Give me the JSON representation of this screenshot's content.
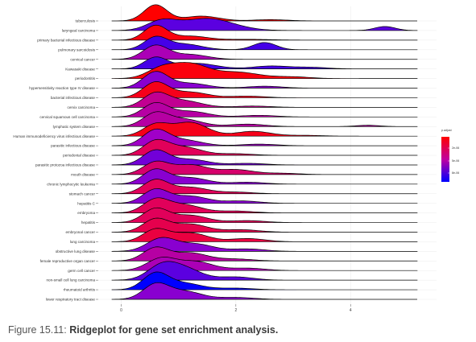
{
  "caption": {
    "number": "Figure 15.11:",
    "title": "Ridgeplot for gene set enrichment analysis."
  },
  "chart_data": {
    "type": "ridgeline",
    "xlim": [
      -0.4,
      5.5
    ],
    "x_ticks": [
      0,
      2,
      4
    ],
    "x_tick_labels": [
      "0",
      "2",
      "4"
    ],
    "grid": true,
    "legend_position": "right",
    "legend": {
      "title": "p.adjust",
      "range": [
        0.0,
        0.1
      ],
      "labels": [
        "2e-06",
        "5e-06",
        "8e-06"
      ],
      "colors": [
        "#ff0000",
        "#0000ff"
      ]
    },
    "categories": [
      "tuberculosis",
      "laryngeal carcinoma",
      "primary bacterial infectious disease",
      "pulmonary sarcoidosis",
      "cervical cancer",
      "Kawasaki disease",
      "periodontitis",
      "hypersensitivity reaction type IV disease",
      "bacterial infectious disease",
      "cervix carcinoma",
      "cervical squamous cell carcinoma",
      "lymphatic system disease",
      "Human immunodeficiency virus infectious disease",
      "parasitic infectious disease",
      "periodontal disease",
      "parasitic protozoa infectious disease",
      "mouth disease",
      "chronic lymphocytic leukemia",
      "stomach cancer",
      "hepatitis C",
      "embryoma",
      "hepatitis",
      "embryonal cancer",
      "lung carcinoma",
      "obstructive lung disease",
      "female reproductive organ cancer",
      "germ cell cancer",
      "non-small cell lung carcinoma",
      "rheumatoid arthritis",
      "lower respiratory tract disease"
    ],
    "series": [
      {
        "peaks": [
          [
            0.6,
            1.0,
            0.2
          ],
          [
            1.4,
            0.3,
            0.3
          ],
          [
            2.6,
            0.08,
            0.3
          ]
        ],
        "color_value": 0.0
      },
      {
        "peaks": [
          [
            0.7,
            0.55,
            0.25
          ],
          [
            1.5,
            0.75,
            0.45
          ],
          [
            4.6,
            0.25,
            0.18
          ]
        ],
        "color_value": 0.8
      },
      {
        "peaks": [
          [
            0.6,
            0.9,
            0.2
          ],
          [
            1.2,
            0.25,
            0.3
          ],
          [
            2.2,
            0.05,
            0.4
          ]
        ],
        "color_value": 0.05
      },
      {
        "peaks": [
          [
            0.6,
            0.75,
            0.2
          ],
          [
            1.1,
            0.35,
            0.3
          ],
          [
            2.5,
            0.45,
            0.2
          ]
        ],
        "color_value": 0.85
      },
      {
        "peaks": [
          [
            0.6,
            0.85,
            0.22
          ],
          [
            1.2,
            0.3,
            0.3
          ]
        ],
        "color_value": 0.6
      },
      {
        "peaks": [
          [
            0.6,
            0.7,
            0.2
          ],
          [
            1.3,
            0.35,
            0.35
          ],
          [
            2.6,
            0.18,
            0.3
          ],
          [
            3.3,
            0.1,
            0.3
          ]
        ],
        "color_value": 0.85
      },
      {
        "peaks": [
          [
            0.7,
            0.6,
            0.25
          ],
          [
            1.2,
            0.85,
            0.3
          ],
          [
            2.0,
            0.4,
            0.4
          ],
          [
            3.0,
            0.1,
            0.3
          ]
        ],
        "color_value": 0.05
      },
      {
        "peaks": [
          [
            0.6,
            1.0,
            0.22
          ],
          [
            1.2,
            0.3,
            0.3
          ],
          [
            2.5,
            0.12,
            0.3
          ]
        ],
        "color_value": 0.7
      },
      {
        "peaks": [
          [
            0.6,
            0.95,
            0.22
          ],
          [
            1.2,
            0.35,
            0.3
          ],
          [
            2.2,
            0.1,
            0.3
          ]
        ],
        "color_value": 0.1
      },
      {
        "peaks": [
          [
            0.6,
            0.85,
            0.22
          ],
          [
            1.1,
            0.4,
            0.3
          ],
          [
            2.3,
            0.08,
            0.3
          ]
        ],
        "color_value": 0.5
      },
      {
        "peaks": [
          [
            0.6,
            0.85,
            0.22
          ],
          [
            1.2,
            0.35,
            0.3
          ],
          [
            2.4,
            0.1,
            0.3
          ]
        ],
        "color_value": 0.55
      },
      {
        "peaks": [
          [
            0.6,
            0.8,
            0.22
          ],
          [
            1.1,
            0.45,
            0.3
          ],
          [
            2.2,
            0.15,
            0.3
          ],
          [
            4.3,
            0.08,
            0.2
          ]
        ],
        "color_value": 0.55
      },
      {
        "peaks": [
          [
            0.6,
            0.7,
            0.22
          ],
          [
            1.2,
            0.85,
            0.3
          ],
          [
            2.3,
            0.3,
            0.3
          ],
          [
            3.2,
            0.05,
            0.3
          ]
        ],
        "color_value": 0.1
      },
      {
        "peaks": [
          [
            0.6,
            0.95,
            0.22
          ],
          [
            1.1,
            0.35,
            0.3
          ],
          [
            2.4,
            0.1,
            0.3
          ]
        ],
        "color_value": 0.65
      },
      {
        "peaks": [
          [
            0.6,
            0.85,
            0.22
          ],
          [
            1.1,
            0.5,
            0.3
          ],
          [
            2.0,
            0.1,
            0.3
          ]
        ],
        "color_value": 0.35
      },
      {
        "peaks": [
          [
            0.6,
            0.9,
            0.22
          ],
          [
            1.2,
            0.35,
            0.3
          ],
          [
            2.2,
            0.1,
            0.3
          ]
        ],
        "color_value": 0.75
      },
      {
        "peaks": [
          [
            0.6,
            0.75,
            0.22
          ],
          [
            1.2,
            0.6,
            0.3
          ],
          [
            2.0,
            0.3,
            0.3
          ],
          [
            2.8,
            0.08,
            0.3
          ]
        ],
        "color_value": 0.4
      },
      {
        "peaks": [
          [
            0.6,
            0.9,
            0.22
          ],
          [
            1.2,
            0.4,
            0.3
          ],
          [
            2.2,
            0.12,
            0.3
          ]
        ],
        "color_value": 0.7
      },
      {
        "peaks": [
          [
            0.6,
            0.85,
            0.22
          ],
          [
            1.2,
            0.4,
            0.3
          ],
          [
            2.0,
            0.1,
            0.3
          ]
        ],
        "color_value": 0.35
      },
      {
        "peaks": [
          [
            0.6,
            0.85,
            0.22
          ],
          [
            1.2,
            0.45,
            0.3
          ],
          [
            2.1,
            0.15,
            0.3
          ]
        ],
        "color_value": 0.7
      },
      {
        "peaks": [
          [
            0.6,
            0.8,
            0.22
          ],
          [
            1.1,
            0.5,
            0.3
          ],
          [
            2.0,
            0.12,
            0.3
          ]
        ],
        "color_value": 0.35
      },
      {
        "peaks": [
          [
            0.6,
            0.85,
            0.22
          ],
          [
            1.2,
            0.45,
            0.3
          ],
          [
            2.2,
            0.12,
            0.3
          ]
        ],
        "color_value": 0.35
      },
      {
        "peaks": [
          [
            0.6,
            0.8,
            0.22
          ],
          [
            1.2,
            0.5,
            0.3
          ],
          [
            2.1,
            0.15,
            0.3
          ]
        ],
        "color_value": 0.3
      },
      {
        "peaks": [
          [
            0.6,
            0.75,
            0.22
          ],
          [
            1.2,
            0.55,
            0.3
          ],
          [
            2.2,
            0.2,
            0.3
          ]
        ],
        "color_value": 0.25
      },
      {
        "peaks": [
          [
            0.7,
            0.8,
            0.25
          ],
          [
            1.3,
            0.45,
            0.3
          ],
          [
            2.2,
            0.15,
            0.3
          ]
        ],
        "color_value": 0.7
      },
      {
        "peaks": [
          [
            0.6,
            0.8,
            0.22
          ],
          [
            1.2,
            0.5,
            0.3
          ],
          [
            2.0,
            0.12,
            0.3
          ]
        ],
        "color_value": 0.55
      },
      {
        "peaks": [
          [
            0.7,
            0.75,
            0.25
          ],
          [
            1.3,
            0.55,
            0.3
          ],
          [
            2.2,
            0.15,
            0.3
          ]
        ],
        "color_value": 0.6
      },
      {
        "peaks": [
          [
            0.7,
            0.8,
            0.25
          ],
          [
            1.1,
            0.7,
            0.3
          ],
          [
            2.0,
            0.2,
            0.3
          ]
        ],
        "color_value": 0.8
      },
      {
        "peaks": [
          [
            0.6,
            1.0,
            0.22
          ],
          [
            1.1,
            0.4,
            0.3
          ],
          [
            2.0,
            0.1,
            0.3
          ]
        ],
        "color_value": 1.0
      },
      {
        "peaks": [
          [
            0.6,
            0.9,
            0.22
          ],
          [
            1.1,
            0.5,
            0.3
          ],
          [
            2.0,
            0.12,
            0.3
          ]
        ],
        "color_value": 0.7
      }
    ]
  }
}
